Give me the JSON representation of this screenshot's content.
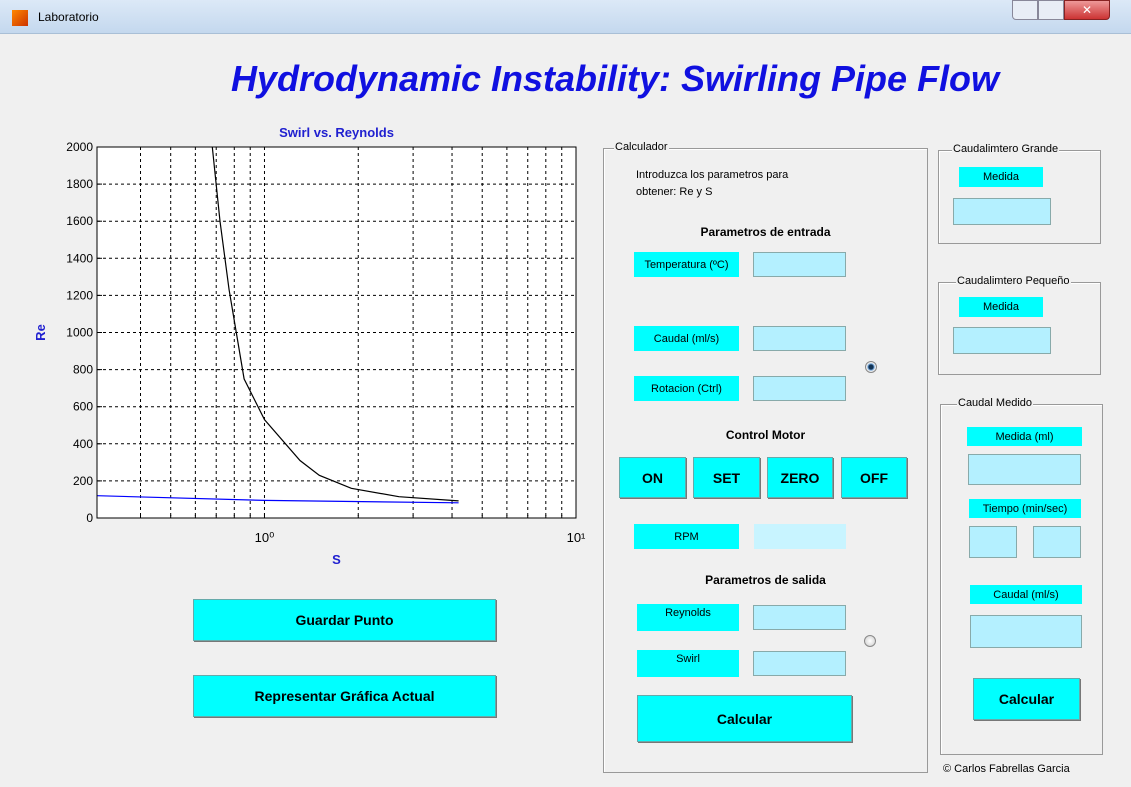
{
  "window": {
    "title": "Laboratorio"
  },
  "header": {
    "title": "Hydrodynamic Instability: Swirling Pipe Flow"
  },
  "chart_data": {
    "type": "line",
    "title": "Swirl vs. Reynolds",
    "x_label": "S",
    "y_label": "Re",
    "xscale": "log",
    "xlim": [
      0.29,
      10
    ],
    "xticks": [
      {
        "value": 1,
        "label": "10⁰"
      },
      {
        "value": 10,
        "label": "10¹"
      }
    ],
    "xminorticks": [
      0.4,
      0.5,
      0.6,
      0.7,
      0.8,
      0.9,
      2,
      3,
      4,
      5,
      6,
      7,
      8,
      9
    ],
    "ylim": [
      0,
      2000
    ],
    "yticks": [
      0,
      200,
      400,
      600,
      800,
      1000,
      1200,
      1400,
      1600,
      1800,
      2000
    ],
    "grid": true,
    "series": [
      {
        "color": "#000000",
        "x": [
          0.68,
          0.72,
          0.77,
          0.86,
          1.0,
          1.3,
          1.5,
          1.9,
          2.7,
          4.2
        ],
        "values": [
          2000,
          1600,
          1230,
          750,
          530,
          310,
          230,
          160,
          115,
          92
        ]
      },
      {
        "color": "#0000ff",
        "x": [
          0.29,
          1.0,
          4.2
        ],
        "values": [
          120,
          95,
          82
        ]
      }
    ]
  },
  "plot_buttons": [
    "Guardar Punto",
    "Representar Gráfica Actual"
  ],
  "calculator": {
    "title": "Calculador",
    "instructions": [
      "Introduzca los parametros para",
      "obtener: Re y S"
    ],
    "inputs_heading": "Parametros de entrada",
    "inputs": [
      "Temperatura (ºC)",
      "Caudal (ml/s)",
      "Rotacion (Ctrl)"
    ],
    "motor_heading": "Control Motor",
    "motor_buttons": [
      "ON",
      "SET",
      "ZERO",
      "OFF"
    ],
    "rpm_label": "RPM",
    "outputs_heading": "Parametros de salida",
    "outputs": [
      "Reynolds",
      "Swirl"
    ],
    "button": "Calcular"
  },
  "flowmeter_large": {
    "title": "Caudalimtero Grande",
    "label": "Medida"
  },
  "flowmeter_small": {
    "title": "Caudalimtero Pequeño",
    "label": "Medida"
  },
  "measured_flow": {
    "title": "Caudal Medido",
    "volume_label": "Medida (ml)",
    "time_label": "Tiempo (min/sec)",
    "flow_label": "Caudal (ml/s)",
    "button": "Calcular"
  },
  "footer": {
    "copyright": "© Carlos Fabrellas Garcia"
  }
}
